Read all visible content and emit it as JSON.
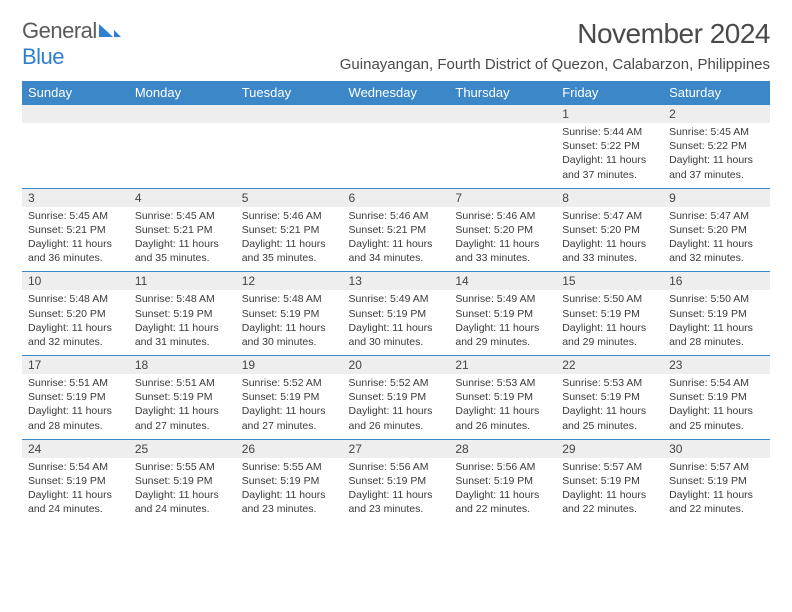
{
  "logo": {
    "text1": "General",
    "text2": "Blue"
  },
  "title": "November 2024",
  "location": "Guinayangan, Fourth District of Quezon, Calabarzon, Philippines",
  "colors": {
    "header_bg": "#3b87c8",
    "header_fg": "#ffffff",
    "daynum_bg": "#eeeeee",
    "row_border": "#3b87c8",
    "text": "#3a3a3a",
    "title_text": "#4a4a4a",
    "logo_gray": "#5a5a5a",
    "logo_blue": "#2f7fd1"
  },
  "day_headers": [
    "Sunday",
    "Monday",
    "Tuesday",
    "Wednesday",
    "Thursday",
    "Friday",
    "Saturday"
  ],
  "weeks": [
    [
      {
        "n": "",
        "lines": []
      },
      {
        "n": "",
        "lines": []
      },
      {
        "n": "",
        "lines": []
      },
      {
        "n": "",
        "lines": []
      },
      {
        "n": "",
        "lines": []
      },
      {
        "n": "1",
        "lines": [
          "Sunrise: 5:44 AM",
          "Sunset: 5:22 PM",
          "Daylight: 11 hours and 37 minutes."
        ]
      },
      {
        "n": "2",
        "lines": [
          "Sunrise: 5:45 AM",
          "Sunset: 5:22 PM",
          "Daylight: 11 hours and 37 minutes."
        ]
      }
    ],
    [
      {
        "n": "3",
        "lines": [
          "Sunrise: 5:45 AM",
          "Sunset: 5:21 PM",
          "Daylight: 11 hours and 36 minutes."
        ]
      },
      {
        "n": "4",
        "lines": [
          "Sunrise: 5:45 AM",
          "Sunset: 5:21 PM",
          "Daylight: 11 hours and 35 minutes."
        ]
      },
      {
        "n": "5",
        "lines": [
          "Sunrise: 5:46 AM",
          "Sunset: 5:21 PM",
          "Daylight: 11 hours and 35 minutes."
        ]
      },
      {
        "n": "6",
        "lines": [
          "Sunrise: 5:46 AM",
          "Sunset: 5:21 PM",
          "Daylight: 11 hours and 34 minutes."
        ]
      },
      {
        "n": "7",
        "lines": [
          "Sunrise: 5:46 AM",
          "Sunset: 5:20 PM",
          "Daylight: 11 hours and 33 minutes."
        ]
      },
      {
        "n": "8",
        "lines": [
          "Sunrise: 5:47 AM",
          "Sunset: 5:20 PM",
          "Daylight: 11 hours and 33 minutes."
        ]
      },
      {
        "n": "9",
        "lines": [
          "Sunrise: 5:47 AM",
          "Sunset: 5:20 PM",
          "Daylight: 11 hours and 32 minutes."
        ]
      }
    ],
    [
      {
        "n": "10",
        "lines": [
          "Sunrise: 5:48 AM",
          "Sunset: 5:20 PM",
          "Daylight: 11 hours and 32 minutes."
        ]
      },
      {
        "n": "11",
        "lines": [
          "Sunrise: 5:48 AM",
          "Sunset: 5:19 PM",
          "Daylight: 11 hours and 31 minutes."
        ]
      },
      {
        "n": "12",
        "lines": [
          "Sunrise: 5:48 AM",
          "Sunset: 5:19 PM",
          "Daylight: 11 hours and 30 minutes."
        ]
      },
      {
        "n": "13",
        "lines": [
          "Sunrise: 5:49 AM",
          "Sunset: 5:19 PM",
          "Daylight: 11 hours and 30 minutes."
        ]
      },
      {
        "n": "14",
        "lines": [
          "Sunrise: 5:49 AM",
          "Sunset: 5:19 PM",
          "Daylight: 11 hours and 29 minutes."
        ]
      },
      {
        "n": "15",
        "lines": [
          "Sunrise: 5:50 AM",
          "Sunset: 5:19 PM",
          "Daylight: 11 hours and 29 minutes."
        ]
      },
      {
        "n": "16",
        "lines": [
          "Sunrise: 5:50 AM",
          "Sunset: 5:19 PM",
          "Daylight: 11 hours and 28 minutes."
        ]
      }
    ],
    [
      {
        "n": "17",
        "lines": [
          "Sunrise: 5:51 AM",
          "Sunset: 5:19 PM",
          "Daylight: 11 hours and 28 minutes."
        ]
      },
      {
        "n": "18",
        "lines": [
          "Sunrise: 5:51 AM",
          "Sunset: 5:19 PM",
          "Daylight: 11 hours and 27 minutes."
        ]
      },
      {
        "n": "19",
        "lines": [
          "Sunrise: 5:52 AM",
          "Sunset: 5:19 PM",
          "Daylight: 11 hours and 27 minutes."
        ]
      },
      {
        "n": "20",
        "lines": [
          "Sunrise: 5:52 AM",
          "Sunset: 5:19 PM",
          "Daylight: 11 hours and 26 minutes."
        ]
      },
      {
        "n": "21",
        "lines": [
          "Sunrise: 5:53 AM",
          "Sunset: 5:19 PM",
          "Daylight: 11 hours and 26 minutes."
        ]
      },
      {
        "n": "22",
        "lines": [
          "Sunrise: 5:53 AM",
          "Sunset: 5:19 PM",
          "Daylight: 11 hours and 25 minutes."
        ]
      },
      {
        "n": "23",
        "lines": [
          "Sunrise: 5:54 AM",
          "Sunset: 5:19 PM",
          "Daylight: 11 hours and 25 minutes."
        ]
      }
    ],
    [
      {
        "n": "24",
        "lines": [
          "Sunrise: 5:54 AM",
          "Sunset: 5:19 PM",
          "Daylight: 11 hours and 24 minutes."
        ]
      },
      {
        "n": "25",
        "lines": [
          "Sunrise: 5:55 AM",
          "Sunset: 5:19 PM",
          "Daylight: 11 hours and 24 minutes."
        ]
      },
      {
        "n": "26",
        "lines": [
          "Sunrise: 5:55 AM",
          "Sunset: 5:19 PM",
          "Daylight: 11 hours and 23 minutes."
        ]
      },
      {
        "n": "27",
        "lines": [
          "Sunrise: 5:56 AM",
          "Sunset: 5:19 PM",
          "Daylight: 11 hours and 23 minutes."
        ]
      },
      {
        "n": "28",
        "lines": [
          "Sunrise: 5:56 AM",
          "Sunset: 5:19 PM",
          "Daylight: 11 hours and 22 minutes."
        ]
      },
      {
        "n": "29",
        "lines": [
          "Sunrise: 5:57 AM",
          "Sunset: 5:19 PM",
          "Daylight: 11 hours and 22 minutes."
        ]
      },
      {
        "n": "30",
        "lines": [
          "Sunrise: 5:57 AM",
          "Sunset: 5:19 PM",
          "Daylight: 11 hours and 22 minutes."
        ]
      }
    ]
  ]
}
